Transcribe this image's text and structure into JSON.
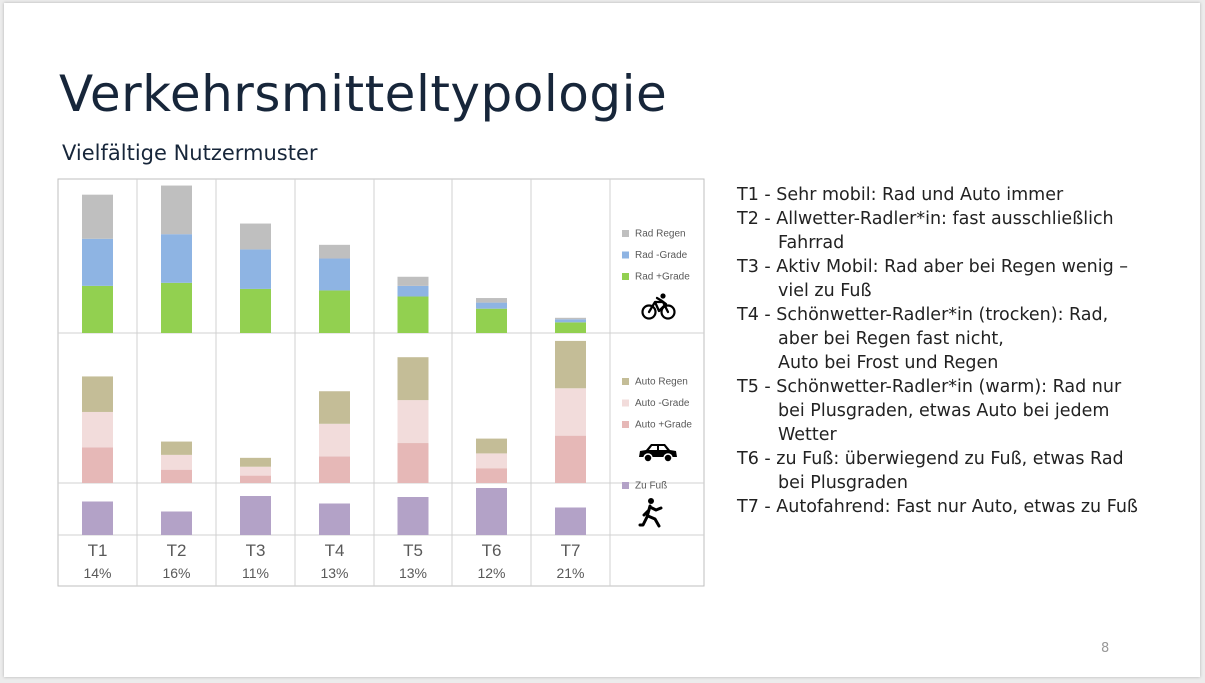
{
  "title": "Verkehrsmitteltypologie",
  "subtitle": "Vielfältige Nutzermuster",
  "page_number": "8",
  "types": [
    {
      "lines": [
        "T1 - Sehr mobil: Rad und Auto immer"
      ]
    },
    {
      "lines": [
        "T2 - Allwetter-Radler*in: fast ausschließlich",
        "Fahrrad"
      ]
    },
    {
      "lines": [
        "T3 - Aktiv Mobil: Rad aber bei Regen wenig –",
        "viel zu Fuß"
      ]
    },
    {
      "lines": [
        "T4 - Schönwetter-Radler*in (trocken): Rad,",
        "aber bei Regen fast nicht,",
        "Auto bei Frost und Regen"
      ]
    },
    {
      "lines": [
        "T5 - Schönwetter-Radler*in (warm): Rad nur",
        "bei Plusgraden, etwas Auto bei jedem",
        "Wetter"
      ]
    },
    {
      "lines": [
        "T6 - zu Fuß: überwiegend zu Fuß, etwas Rad",
        "bei Plusgraden"
      ]
    },
    {
      "lines": [
        "T7 - Autofahrend: Fast nur Auto, etwas zu Fuß"
      ]
    }
  ],
  "chart_data": {
    "type": "bar",
    "stacked": true,
    "categories": [
      "T1",
      "T2",
      "T3",
      "T4",
      "T5",
      "T6",
      "T7"
    ],
    "shares": [
      "14%",
      "16%",
      "11%",
      "13%",
      "13%",
      "12%",
      "21%"
    ],
    "panels": [
      {
        "name": "Rad",
        "icon": "bicycle-icon",
        "ylim": [
          0,
          1
        ],
        "series": [
          {
            "name": "Rad +Grade",
            "color": "#92d050",
            "values": [
              0.31,
              0.33,
              0.29,
              0.28,
              0.24,
              0.16,
              0.07
            ]
          },
          {
            "name": "Rad -Grade",
            "color": "#8eb4e3",
            "values": [
              0.31,
              0.32,
              0.26,
              0.21,
              0.07,
              0.04,
              0.02
            ]
          },
          {
            "name": "Rad Regen",
            "color": "#bfbfbf",
            "values": [
              0.29,
              0.32,
              0.17,
              0.09,
              0.06,
              0.03,
              0.01
            ]
          }
        ]
      },
      {
        "name": "Auto",
        "icon": "car-icon",
        "ylim": [
          0,
          1
        ],
        "series": [
          {
            "name": "Auto +Grade",
            "color": "#e6b8b7",
            "values": [
              0.24,
              0.09,
              0.05,
              0.18,
              0.27,
              0.1,
              0.32
            ]
          },
          {
            "name": "Auto -Grade",
            "color": "#f2dcdb",
            "values": [
              0.24,
              0.1,
              0.06,
              0.22,
              0.29,
              0.1,
              0.32
            ]
          },
          {
            "name": "Auto Regen",
            "color": "#c4bd97",
            "values": [
              0.24,
              0.09,
              0.06,
              0.22,
              0.29,
              0.1,
              0.32
            ]
          }
        ]
      },
      {
        "name": "Zu Fuß",
        "icon": "walking-icon",
        "ylim": [
          0,
          1
        ],
        "series": [
          {
            "name": "Zu Fuß",
            "color": "#b3a2c7",
            "values": [
              0.67,
              0.47,
              0.78,
              0.63,
              0.76,
              0.94,
              0.55
            ]
          }
        ]
      }
    ]
  }
}
